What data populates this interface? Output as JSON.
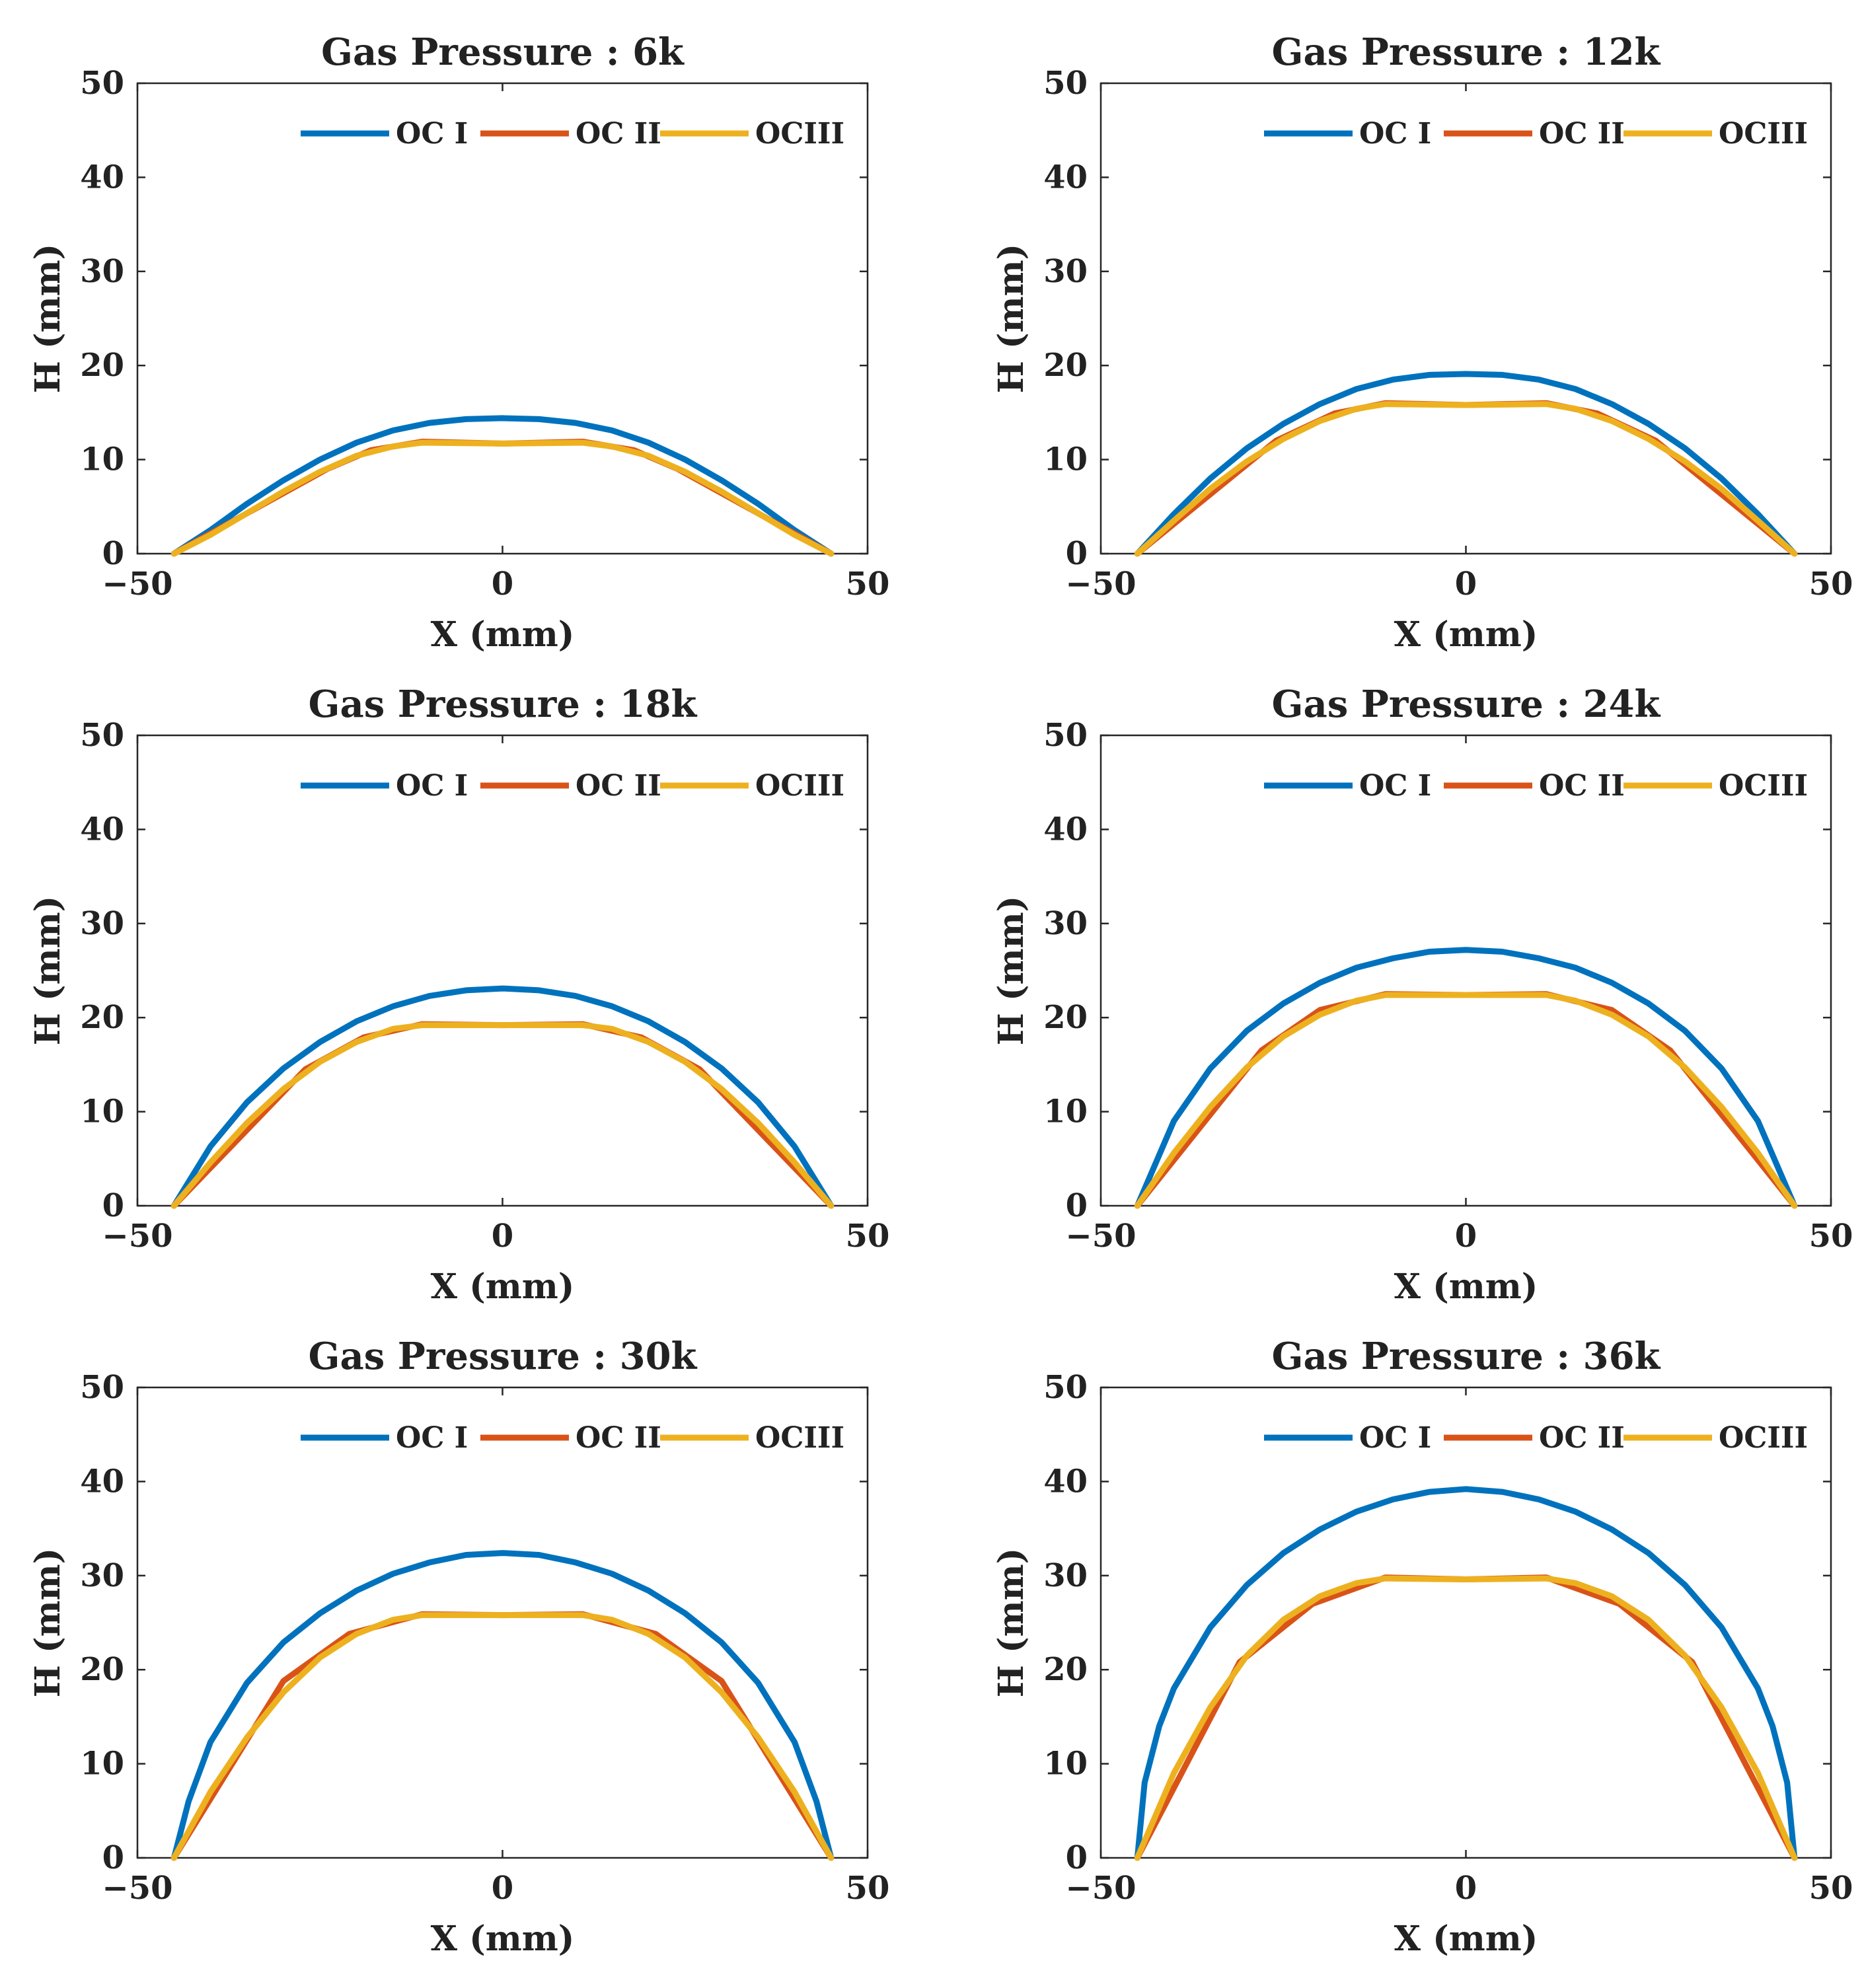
{
  "figure": {
    "series_names": [
      "OC I",
      "OC II",
      "OCIII"
    ],
    "colors": {
      "OC I": "#0072BD",
      "OC II": "#D95319",
      "OCIII": "#EDB120"
    }
  },
  "chart_data": [
    {
      "type": "line",
      "title": "Gas Pressure : 6k",
      "xlabel": "X (mm)",
      "ylabel": "H (mm)",
      "xlim": [
        -50,
        50
      ],
      "ylim": [
        0,
        50
      ],
      "xticks": [
        "−50",
        "0",
        "50"
      ],
      "yticks": [
        "0",
        "10",
        "20",
        "30",
        "40",
        "50"
      ],
      "legend": [
        "OC I",
        "OC II",
        "OCIII"
      ],
      "legend_position": "top-right",
      "series": [
        {
          "name": "OC I",
          "x": [
            -45,
            -40,
            -35,
            -30,
            -25,
            -20,
            -15,
            -10,
            -5,
            0,
            5,
            10,
            15,
            20,
            25,
            30,
            35,
            40,
            45
          ],
          "values": [
            0,
            2.5,
            5.3,
            7.8,
            10.0,
            11.8,
            13.1,
            13.9,
            14.3,
            14.4,
            14.3,
            13.9,
            13.1,
            11.8,
            10.0,
            7.8,
            5.3,
            2.5,
            0
          ]
        },
        {
          "name": "OC II",
          "x": [
            -45,
            -24,
            -18,
            -11,
            0,
            11,
            18,
            24,
            45
          ],
          "values": [
            0,
            9.0,
            11.0,
            11.9,
            11.7,
            11.9,
            11.0,
            9.0,
            0
          ]
        },
        {
          "name": "OCIII",
          "x": [
            -45,
            -40,
            -35,
            -30,
            -25,
            -20,
            -15,
            -11,
            0,
            11,
            15,
            20,
            25,
            30,
            35,
            40,
            45
          ],
          "values": [
            0,
            2.0,
            4.3,
            6.6,
            8.7,
            10.4,
            11.4,
            11.8,
            11.7,
            11.8,
            11.4,
            10.4,
            8.7,
            6.6,
            4.3,
            2.0,
            0
          ]
        }
      ]
    },
    {
      "type": "line",
      "title": "Gas Pressure : 12k",
      "xlabel": "X (mm)",
      "ylabel": "H (mm)",
      "xlim": [
        -50,
        50
      ],
      "ylim": [
        0,
        50
      ],
      "xticks": [
        "−50",
        "0",
        "50"
      ],
      "yticks": [
        "0",
        "10",
        "20",
        "30",
        "40",
        "50"
      ],
      "legend": [
        "OC I",
        "OC II",
        "OCIII"
      ],
      "legend_position": "top-right",
      "series": [
        {
          "name": "OC I",
          "x": [
            -45,
            -40,
            -35,
            -30,
            -25,
            -20,
            -15,
            -10,
            -5,
            0,
            5,
            10,
            15,
            20,
            25,
            30,
            35,
            40,
            45
          ],
          "values": [
            0,
            4.2,
            8.0,
            11.2,
            13.8,
            15.9,
            17.5,
            18.5,
            19.0,
            19.1,
            19.0,
            18.5,
            17.5,
            15.9,
            13.8,
            11.2,
            8.0,
            4.2,
            0
          ]
        },
        {
          "name": "OC II",
          "x": [
            -45,
            -26,
            -18,
            -11,
            0,
            11,
            18,
            26,
            45
          ],
          "values": [
            0,
            12.0,
            14.9,
            16.0,
            15.8,
            16.0,
            14.9,
            12.0,
            0
          ]
        },
        {
          "name": "OCIII",
          "x": [
            -45,
            -40,
            -35,
            -30,
            -25,
            -20,
            -15,
            -11,
            0,
            11,
            15,
            20,
            25,
            30,
            35,
            40,
            45
          ],
          "values": [
            0,
            3.5,
            6.9,
            9.8,
            12.2,
            14.1,
            15.4,
            15.9,
            15.8,
            15.9,
            15.4,
            14.1,
            12.2,
            9.8,
            6.9,
            3.5,
            0
          ]
        }
      ]
    },
    {
      "type": "line",
      "title": "Gas Pressure : 18k",
      "xlabel": "X (mm)",
      "ylabel": "H (mm)",
      "xlim": [
        -50,
        50
      ],
      "ylim": [
        0,
        50
      ],
      "xticks": [
        "−50",
        "0",
        "50"
      ],
      "yticks": [
        "0",
        "10",
        "20",
        "30",
        "40",
        "50"
      ],
      "legend": [
        "OC I",
        "OC II",
        "OCIII"
      ],
      "legend_position": "top-right",
      "series": [
        {
          "name": "OC I",
          "x": [
            -45,
            -40,
            -35,
            -30,
            -25,
            -20,
            -15,
            -10,
            -5,
            0,
            5,
            10,
            15,
            20,
            25,
            30,
            35,
            40,
            45
          ],
          "values": [
            0,
            6.3,
            11.0,
            14.6,
            17.4,
            19.6,
            21.2,
            22.3,
            22.9,
            23.1,
            22.9,
            22.3,
            21.2,
            19.6,
            17.4,
            14.6,
            11.0,
            6.3,
            0
          ]
        },
        {
          "name": "OC II",
          "x": [
            -45,
            -27,
            -19,
            -11,
            0,
            11,
            19,
            27,
            45
          ],
          "values": [
            0,
            14.5,
            17.9,
            19.3,
            19.2,
            19.3,
            17.9,
            14.5,
            0
          ]
        },
        {
          "name": "OCIII",
          "x": [
            -45,
            -40,
            -35,
            -30,
            -25,
            -20,
            -15,
            -11,
            0,
            11,
            15,
            20,
            25,
            30,
            35,
            40,
            45
          ],
          "values": [
            0,
            4.6,
            8.8,
            12.4,
            15.3,
            17.4,
            18.8,
            19.2,
            19.2,
            19.2,
            18.8,
            17.4,
            15.3,
            12.4,
            8.8,
            4.6,
            0
          ]
        }
      ]
    },
    {
      "type": "line",
      "title": "Gas Pressure : 24k",
      "xlabel": "X (mm)",
      "ylabel": "H (mm)",
      "xlim": [
        -50,
        50
      ],
      "ylim": [
        0,
        50
      ],
      "xticks": [
        "−50",
        "0",
        "50"
      ],
      "yticks": [
        "0",
        "10",
        "20",
        "30",
        "40",
        "50"
      ],
      "legend": [
        "OC I",
        "OC II",
        "OCIII"
      ],
      "legend_position": "top-right",
      "series": [
        {
          "name": "OC I",
          "x": [
            -45,
            -40,
            -35,
            -30,
            -25,
            -20,
            -15,
            -10,
            -5,
            0,
            5,
            10,
            15,
            20,
            25,
            30,
            35,
            40,
            45
          ],
          "values": [
            0,
            9.0,
            14.6,
            18.6,
            21.5,
            23.7,
            25.3,
            26.3,
            27.0,
            27.2,
            27.0,
            26.3,
            25.3,
            23.7,
            21.5,
            18.6,
            14.6,
            9.0,
            0
          ]
        },
        {
          "name": "OC II",
          "x": [
            -45,
            -28,
            -20,
            -11,
            0,
            11,
            20,
            28,
            45
          ],
          "values": [
            0,
            16.5,
            20.8,
            22.5,
            22.4,
            22.5,
            20.8,
            16.5,
            0
          ]
        },
        {
          "name": "OCIII",
          "x": [
            -45,
            -40,
            -35,
            -30,
            -25,
            -20,
            -15,
            -11,
            0,
            11,
            15,
            20,
            25,
            30,
            35,
            40,
            45
          ],
          "values": [
            0,
            5.6,
            10.5,
            14.7,
            18.0,
            20.3,
            21.8,
            22.4,
            22.4,
            22.4,
            21.8,
            20.3,
            18.0,
            14.7,
            10.5,
            5.6,
            0
          ]
        }
      ]
    },
    {
      "type": "line",
      "title": "Gas Pressure : 30k",
      "xlabel": "X (mm)",
      "ylabel": "H (mm)",
      "xlim": [
        -50,
        50
      ],
      "ylim": [
        0,
        50
      ],
      "xticks": [
        "−50",
        "0",
        "50"
      ],
      "yticks": [
        "0",
        "10",
        "20",
        "30",
        "40",
        "50"
      ],
      "legend": [
        "OC I",
        "OC II",
        "OCIII"
      ],
      "legend_position": "top-right",
      "series": [
        {
          "name": "OC I",
          "x": [
            -45,
            -43,
            -40,
            -35,
            -30,
            -25,
            -20,
            -15,
            -10,
            -5,
            0,
            5,
            10,
            15,
            20,
            25,
            30,
            35,
            40,
            43,
            45
          ],
          "values": [
            0,
            6.0,
            12.3,
            18.6,
            22.9,
            26.0,
            28.4,
            30.2,
            31.4,
            32.2,
            32.4,
            32.2,
            31.4,
            30.2,
            28.4,
            26.0,
            22.9,
            18.6,
            12.3,
            6.0,
            0
          ]
        },
        {
          "name": "OC II",
          "x": [
            -45,
            -30,
            -21,
            -11,
            0,
            11,
            21,
            30,
            45
          ],
          "values": [
            0,
            18.8,
            23.8,
            25.9,
            25.8,
            25.9,
            23.8,
            18.8,
            0
          ]
        },
        {
          "name": "OCIII",
          "x": [
            -45,
            -40,
            -35,
            -30,
            -25,
            -20,
            -15,
            -11,
            0,
            11,
            15,
            20,
            25,
            30,
            35,
            40,
            45
          ],
          "values": [
            0,
            7.0,
            12.8,
            17.6,
            21.3,
            23.8,
            25.3,
            25.8,
            25.8,
            25.8,
            25.3,
            23.8,
            21.3,
            17.6,
            12.8,
            7.0,
            0
          ]
        }
      ]
    },
    {
      "type": "line",
      "title": "Gas Pressure : 36k",
      "xlabel": "X (mm)",
      "ylabel": "H (mm)",
      "xlim": [
        -50,
        50
      ],
      "ylim": [
        0,
        50
      ],
      "xticks": [
        "−50",
        "0",
        "50"
      ],
      "yticks": [
        "0",
        "10",
        "20",
        "30",
        "40",
        "50"
      ],
      "legend": [
        "OC I",
        "OC II",
        "OCIII"
      ],
      "legend_position": "top-right",
      "series": [
        {
          "name": "OC I",
          "x": [
            -45,
            -44,
            -42,
            -40,
            -35,
            -30,
            -25,
            -20,
            -15,
            -10,
            -5,
            0,
            5,
            10,
            15,
            20,
            25,
            30,
            35,
            40,
            42,
            44,
            45
          ],
          "values": [
            0,
            8.0,
            14.0,
            18.0,
            24.5,
            29.0,
            32.4,
            34.9,
            36.8,
            38.1,
            38.9,
            39.2,
            38.9,
            38.1,
            36.8,
            34.9,
            32.4,
            29.0,
            24.5,
            18.0,
            14.0,
            8.0,
            0
          ]
        },
        {
          "name": "OC II",
          "x": [
            -45,
            -31,
            -21,
            -11,
            0,
            11,
            21,
            31,
            45
          ],
          "values": [
            0,
            20.8,
            27.0,
            29.8,
            29.6,
            29.8,
            27.0,
            20.8,
            0
          ]
        },
        {
          "name": "OCIII",
          "x": [
            -45,
            -40,
            -35,
            -30,
            -25,
            -20,
            -15,
            -11,
            0,
            11,
            15,
            20,
            25,
            30,
            35,
            40,
            45
          ],
          "values": [
            0,
            9.0,
            16.0,
            21.5,
            25.3,
            27.8,
            29.2,
            29.7,
            29.6,
            29.7,
            29.2,
            27.8,
            25.3,
            21.5,
            16.0,
            9.0,
            0
          ]
        }
      ]
    }
  ]
}
